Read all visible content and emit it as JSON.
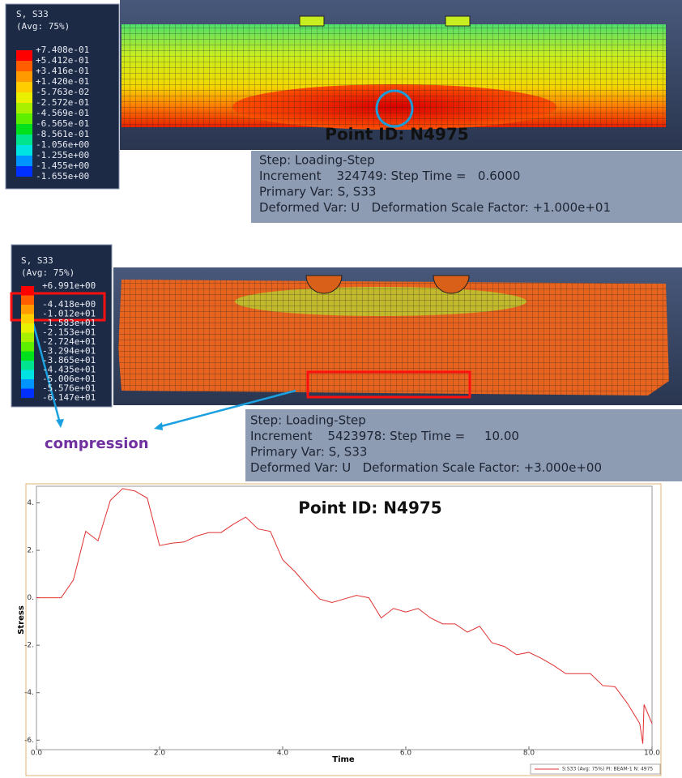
{
  "panels": [
    {
      "legend": {
        "title": "S, S33",
        "subtitle": "(Avg: 75%)",
        "labels": [
          "+7.408e-01",
          "+5.412e-01",
          "+3.416e-01",
          "+1.420e-01",
          "-5.763e-02",
          "-2.572e-01",
          "-4.569e-01",
          "-6.565e-01",
          "-8.561e-01",
          "-1.056e+00",
          "-1.255e+00",
          "-1.455e+00",
          "-1.655e+00"
        ],
        "colors": [
          "#ff0000",
          "#ff5d00",
          "#ff9b00",
          "#ffcd00",
          "#e8f000",
          "#a8f000",
          "#5eef00",
          "#00e01c",
          "#00e38f",
          "#00e3e3",
          "#0094ff",
          "#0030ff"
        ]
      },
      "point_label": "Point ID: N4975",
      "info": [
        "Step: Loading-Step",
        "Increment    324749: Step Time =   0.6000",
        "Primary Var: S, S33",
        "Deformed Var: U   Deformation Scale Factor: +1.000e+01"
      ]
    },
    {
      "legend": {
        "title": "S, S33",
        "subtitle": "(Avg: 75%)",
        "labels": [
          "+6.991e+00",
          null,
          "-4.418e+00",
          "-1.012e+01",
          "-1.583e+01",
          "-2.153e+01",
          "-2.724e+01",
          "-3.294e+01",
          "-3.865e+01",
          "-4.435e+01",
          "-5.006e+01",
          "-5.576e+01",
          "-6.147e+01"
        ],
        "colors": [
          "#ff0000",
          "#ff5d00",
          "#ff9b00",
          "#ffcd00",
          "#e8f000",
          "#a8f000",
          "#5eef00",
          "#00e01c",
          "#00e38f",
          "#00e3e3",
          "#0094ff",
          "#0030ff"
        ]
      },
      "info": [
        "Step: Loading-Step",
        "Increment    5423978: Step Time =     10.00",
        "Primary Var: S, S33",
        "Deformed Var: U   Deformation Scale Factor: +3.000e+00"
      ],
      "annotation": "compression"
    }
  ],
  "chart_data": {
    "type": "line",
    "title": "Point ID: N4975",
    "x_label": "Time",
    "y_label": "Stress",
    "xlim": [
      0,
      10
    ],
    "ylim": [
      -6.4,
      4.7
    ],
    "xticks": [
      {
        "value": 0,
        "label": "0.0"
      },
      {
        "value": 2,
        "label": "2.0"
      },
      {
        "value": 4,
        "label": "4.0"
      },
      {
        "value": 6,
        "label": "6.0"
      },
      {
        "value": 8,
        "label": "8.0"
      },
      {
        "value": 10,
        "label": "10.0"
      }
    ],
    "yticks": [
      {
        "value": -6,
        "label": "-6."
      },
      {
        "value": -4,
        "label": "-4."
      },
      {
        "value": -2,
        "label": "-2."
      },
      {
        "value": 0,
        "label": "0."
      },
      {
        "value": 2,
        "label": "2."
      },
      {
        "value": 4,
        "label": "4."
      }
    ],
    "x": [
      0,
      0.4,
      0.6,
      0.8,
      1.0,
      1.2,
      1.4,
      1.6,
      1.8,
      2.0,
      2.2,
      2.4,
      2.6,
      2.8,
      3.0,
      3.2,
      3.4,
      3.6,
      3.8,
      4.0,
      4.2,
      4.4,
      4.6,
      4.8,
      5.0,
      5.2,
      5.4,
      5.6,
      5.8,
      6.0,
      6.2,
      6.4,
      6.6,
      6.8,
      7.0,
      7.2,
      7.4,
      7.6,
      7.8,
      8.0,
      8.2,
      8.4,
      8.6,
      8.8,
      9.0,
      9.2,
      9.4,
      9.6,
      9.8,
      9.85,
      9.87,
      10
    ],
    "series": [
      {
        "name": "S:S33 (Avg: 75%) PI: BEAM-1 N: 4975",
        "color": "#e03030",
        "values": [
          0,
          0,
          0.75,
          2.8,
          2.4,
          4.1,
          4.6,
          4.5,
          4.2,
          2.2,
          2.3,
          2.35,
          2.6,
          2.75,
          2.75,
          3.1,
          3.4,
          2.9,
          2.8,
          1.6,
          1.1,
          0.5,
          -0.05,
          -0.2,
          -0.05,
          0.1,
          0,
          -0.85,
          -0.45,
          -0.6,
          -0.45,
          -0.85,
          -1.1,
          -1.1,
          -1.45,
          -1.2,
          -1.9,
          -2.05,
          -2.4,
          -2.3,
          -2.55,
          -2.85,
          -3.2,
          -3.2,
          -3.2,
          -3.7,
          -3.75,
          -4.45,
          -5.3,
          -6.15,
          -4.5,
          -5.3
        ]
      }
    ]
  }
}
